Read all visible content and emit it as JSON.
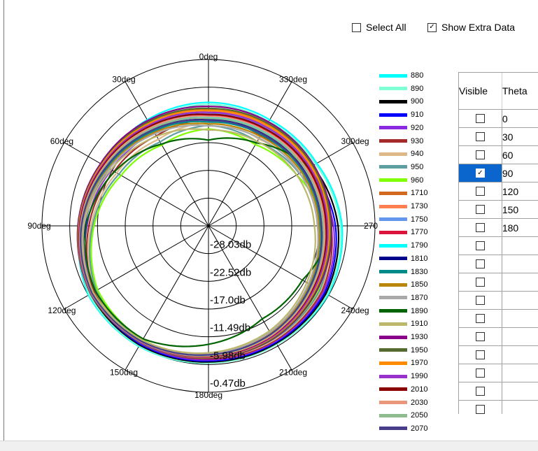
{
  "controls": {
    "select_all": {
      "label": "Select All",
      "checked": false
    },
    "show_extra": {
      "label": "Show Extra Data",
      "checked": true
    }
  },
  "grid": {
    "headers": {
      "visible": "Visible",
      "theta": "Theta"
    },
    "rows": [
      {
        "visible": false,
        "theta": "0"
      },
      {
        "visible": false,
        "theta": "30"
      },
      {
        "visible": false,
        "theta": "60"
      },
      {
        "visible": true,
        "theta": "90",
        "selected": true
      },
      {
        "visible": false,
        "theta": "120"
      },
      {
        "visible": false,
        "theta": "150"
      },
      {
        "visible": false,
        "theta": "180"
      },
      {
        "visible": false,
        "theta": ""
      },
      {
        "visible": false,
        "theta": ""
      },
      {
        "visible": false,
        "theta": ""
      },
      {
        "visible": false,
        "theta": ""
      },
      {
        "visible": false,
        "theta": ""
      },
      {
        "visible": false,
        "theta": ""
      },
      {
        "visible": false,
        "theta": ""
      },
      {
        "visible": false,
        "theta": ""
      },
      {
        "visible": false,
        "theta": ""
      },
      {
        "visible": false,
        "theta": ""
      }
    ]
  },
  "chart_data": {
    "type": "polar-line",
    "angle_labels": [
      "0deg",
      "30deg",
      "60deg",
      "90deg",
      "120deg",
      "150deg",
      "180deg",
      "210deg",
      "240deg",
      "270deg",
      "300deg",
      "330deg"
    ],
    "angle_direction": "counterclockwise, 0deg at top",
    "radial_labels": [
      "-28.03db",
      "-22.52db",
      "-17.0db",
      "-11.49db",
      "-5.98db",
      "-0.47db"
    ],
    "r_range_db": [
      -33.54,
      -0.47
    ],
    "legend_position": "right",
    "series": [
      {
        "name": "880",
        "color": "#00ffff",
        "values": [
          -9.0,
          -9.2,
          -9.3,
          -8.0,
          -6.0,
          -5.9,
          -6.3,
          -6.4,
          -6.1,
          -7.0,
          -8.7,
          -9.2
        ]
      },
      {
        "name": "890",
        "color": "#7fffd4",
        "values": [
          -9.4,
          -9.6,
          -9.6,
          -8.3,
          -6.2,
          -6.0,
          -6.3,
          -6.4,
          -6.3,
          -7.3,
          -9.0,
          -9.6
        ]
      },
      {
        "name": "900",
        "color": "#000000",
        "values": [
          -10.2,
          -10.6,
          -10.3,
          -8.7,
          -6.5,
          -6.2,
          -6.5,
          -6.6,
          -6.6,
          -7.8,
          -9.7,
          -10.5
        ]
      },
      {
        "name": "910",
        "color": "#0000ff",
        "values": [
          -10.8,
          -11.3,
          -10.8,
          -9.0,
          -6.7,
          -6.4,
          -6.7,
          -6.8,
          -6.9,
          -8.3,
          -10.3,
          -11.2
        ]
      },
      {
        "name": "920",
        "color": "#8a2be2",
        "values": [
          -11.5,
          -12.1,
          -11.3,
          -9.4,
          -7.0,
          -6.6,
          -6.9,
          -7.0,
          -7.2,
          -8.7,
          -10.9,
          -12.0
        ]
      },
      {
        "name": "930",
        "color": "#a52a2a",
        "values": [
          -12.3,
          -12.9,
          -11.9,
          -9.8,
          -7.3,
          -6.8,
          -7.1,
          -7.2,
          -7.5,
          -9.2,
          -11.6,
          -12.8
        ]
      },
      {
        "name": "940",
        "color": "#deb887",
        "values": [
          -13.0,
          -13.7,
          -12.5,
          -10.2,
          -7.6,
          -7.0,
          -7.3,
          -7.4,
          -7.8,
          -9.6,
          -12.2,
          -13.6
        ]
      },
      {
        "name": "950",
        "color": "#5f9ea0",
        "values": [
          -13.6,
          -14.3,
          -13.0,
          -10.5,
          -7.8,
          -7.2,
          -7.5,
          -7.6,
          -8.0,
          -10.0,
          -12.7,
          -14.2
        ]
      },
      {
        "name": "960",
        "color": "#7fff00",
        "values": [
          -14.3,
          -15.0,
          -13.5,
          -10.8,
          -8.1,
          -7.4,
          -7.7,
          -7.8,
          -8.3,
          -10.4,
          -13.3,
          -14.9
        ]
      },
      {
        "name": "1710",
        "color": "#d2691e",
        "values": [
          -10.5,
          -10.0,
          -9.2,
          -7.8,
          -6.6,
          -6.8,
          -7.3,
          -7.9,
          -8.8,
          -9.5,
          -9.8,
          -10.2
        ]
      },
      {
        "name": "1730",
        "color": "#ff7f50",
        "values": [
          -10.9,
          -10.3,
          -9.4,
          -7.9,
          -6.6,
          -6.8,
          -7.4,
          -8.0,
          -9.0,
          -9.8,
          -10.1,
          -10.6
        ]
      },
      {
        "name": "1750",
        "color": "#6495ed",
        "values": [
          -11.3,
          -10.6,
          -9.6,
          -8.0,
          -6.7,
          -6.9,
          -7.5,
          -8.2,
          -9.3,
          -10.1,
          -10.5,
          -11.0
        ]
      },
      {
        "name": "1770",
        "color": "#dc143c",
        "values": [
          -11.7,
          -10.9,
          -9.8,
          -8.1,
          -6.7,
          -6.9,
          -7.6,
          -8.3,
          -9.5,
          -10.4,
          -10.8,
          -11.4
        ]
      },
      {
        "name": "1790",
        "color": "#00ffff",
        "values": [
          -12.1,
          -11.2,
          -10.0,
          -8.2,
          -6.8,
          -7.0,
          -7.7,
          -8.5,
          -9.7,
          -10.7,
          -11.2,
          -11.8
        ]
      },
      {
        "name": "1810",
        "color": "#00008b",
        "values": [
          -12.5,
          -11.5,
          -10.2,
          -8.3,
          -6.8,
          -7.0,
          -7.8,
          -8.6,
          -9.9,
          -11.0,
          -11.5,
          -12.2
        ]
      },
      {
        "name": "1830",
        "color": "#008b8b",
        "values": [
          -12.9,
          -11.8,
          -10.4,
          -8.4,
          -6.9,
          -7.1,
          -7.9,
          -8.8,
          -10.1,
          -11.3,
          -11.9,
          -12.6
        ]
      },
      {
        "name": "1850",
        "color": "#b8860b",
        "values": [
          -13.3,
          -12.1,
          -10.6,
          -8.5,
          -6.9,
          -7.1,
          -8.0,
          -8.9,
          -10.4,
          -11.6,
          -12.2,
          -13.0
        ]
      },
      {
        "name": "1870",
        "color": "#a9a9a9",
        "values": [
          -13.7,
          -12.4,
          -10.8,
          -8.6,
          -7.0,
          -7.2,
          -8.1,
          -9.1,
          -10.6,
          -11.9,
          -12.6,
          -13.4
        ]
      },
      {
        "name": "1890",
        "color": "#006400",
        "values": [
          -16.5,
          -14.8,
          -12.0,
          -9.2,
          -7.6,
          -7.6,
          -10.0,
          -12.2,
          -12.0,
          -9.0,
          -10.5,
          -14.5
        ]
      },
      {
        "name": "1910",
        "color": "#bdb76b",
        "values": [
          -14.5,
          -13.0,
          -11.2,
          -8.8,
          -7.1,
          -7.3,
          -8.3,
          -9.4,
          -11.0,
          -12.5,
          -13.3,
          -14.2
        ]
      },
      {
        "name": "1930",
        "color": "#8b008b",
        "values": [
          -9.8,
          -9.4,
          -8.8,
          -7.6,
          -6.5,
          -6.7,
          -7.2,
          -7.7,
          -8.5,
          -9.1,
          -9.4,
          -9.7
        ]
      },
      {
        "name": "1950",
        "color": "#556b2f",
        "values": [
          -10.2,
          -9.7,
          -9.0,
          -7.7,
          -6.5,
          -6.7,
          -7.3,
          -7.8,
          -8.7,
          -9.3,
          -9.6,
          -10.0
        ]
      },
      {
        "name": "1970",
        "color": "#ff8c00",
        "values": [
          -10.6,
          -10.0,
          -9.1,
          -7.8,
          -6.6,
          -6.8,
          -7.4,
          -8.0,
          -8.9,
          -9.6,
          -9.9,
          -10.4
        ]
      },
      {
        "name": "1990",
        "color": "#9932cc",
        "values": [
          -11.0,
          -10.3,
          -9.3,
          -7.9,
          -6.6,
          -6.8,
          -7.5,
          -8.1,
          -9.1,
          -9.9,
          -10.3,
          -10.8
        ]
      },
      {
        "name": "2010",
        "color": "#8b0000",
        "values": [
          -11.4,
          -10.6,
          -9.5,
          -8.0,
          -6.7,
          -6.9,
          -7.6,
          -8.3,
          -9.4,
          -10.2,
          -10.6,
          -11.2
        ]
      },
      {
        "name": "2030",
        "color": "#e9967a",
        "values": [
          -11.8,
          -10.9,
          -9.7,
          -8.1,
          -6.7,
          -6.9,
          -7.7,
          -8.4,
          -9.6,
          -10.5,
          -11.0,
          -11.6
        ]
      },
      {
        "name": "2050",
        "color": "#8fbc8f",
        "values": [
          -12.2,
          -11.2,
          -9.9,
          -8.2,
          -6.8,
          -7.0,
          -7.8,
          -8.6,
          -9.8,
          -10.8,
          -11.3,
          -12.0
        ]
      },
      {
        "name": "2070",
        "color": "#483d8b",
        "values": [
          -12.6,
          -11.5,
          -10.1,
          -8.3,
          -6.8,
          -7.0,
          -7.9,
          -8.7,
          -10.0,
          -11.1,
          -11.7,
          -12.4
        ]
      }
    ]
  }
}
